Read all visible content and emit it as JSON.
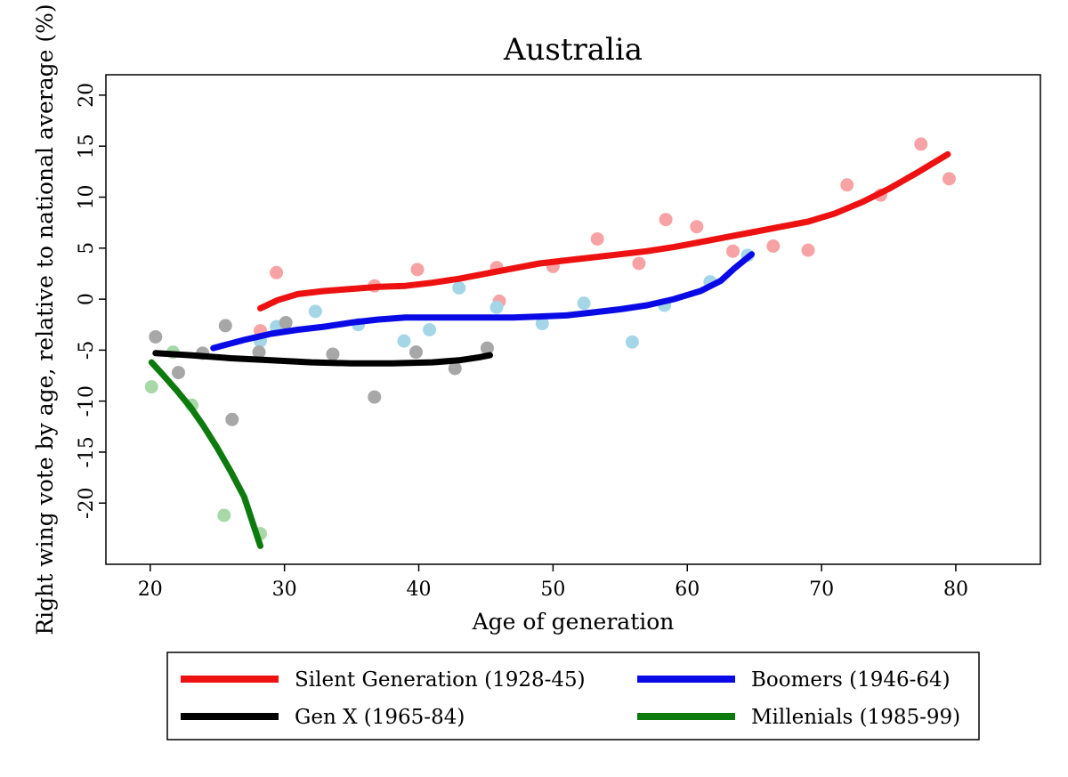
{
  "chart_data": {
    "type": "scatter",
    "title": "Australia",
    "xlabel": "Age of generation",
    "ylabel": "Right wing vote by age, relative to national average (%)",
    "xlim": [
      16.7,
      86.3
    ],
    "ylim": [
      -26,
      22
    ],
    "xticks": [
      20,
      30,
      40,
      50,
      60,
      70,
      80
    ],
    "yticks": [
      -20,
      -15,
      -10,
      -5,
      0,
      5,
      10,
      15,
      20
    ],
    "grid": false,
    "legend_position": "bottom",
    "series": [
      {
        "name": "Silent Generation (1928-45)",
        "color": "#ee1111",
        "point_color": "#f7a3a6",
        "points": [
          [
            28.2,
            -3.1
          ],
          [
            29.4,
            2.6
          ],
          [
            36.7,
            1.3
          ],
          [
            39.9,
            2.9
          ],
          [
            45.8,
            3.1
          ],
          [
            46.0,
            -0.2
          ],
          [
            50.0,
            3.2
          ],
          [
            53.3,
            5.9
          ],
          [
            56.4,
            3.5
          ],
          [
            58.4,
            7.8
          ],
          [
            60.7,
            7.1
          ],
          [
            63.4,
            4.7
          ],
          [
            66.4,
            5.2
          ],
          [
            69.0,
            4.8
          ],
          [
            71.9,
            11.2
          ],
          [
            74.4,
            10.2
          ],
          [
            77.4,
            15.2
          ],
          [
            79.5,
            11.8
          ]
        ],
        "trend": [
          [
            28.2,
            -0.9
          ],
          [
            29.5,
            -0.1
          ],
          [
            31.0,
            0.5
          ],
          [
            33.0,
            0.8
          ],
          [
            35.0,
            1.0
          ],
          [
            37.0,
            1.2
          ],
          [
            39.0,
            1.3
          ],
          [
            41.0,
            1.6
          ],
          [
            43.0,
            2.0
          ],
          [
            45.0,
            2.5
          ],
          [
            47.0,
            3.0
          ],
          [
            49.0,
            3.5
          ],
          [
            51.0,
            3.8
          ],
          [
            53.0,
            4.1
          ],
          [
            55.0,
            4.4
          ],
          [
            57.0,
            4.7
          ],
          [
            59.0,
            5.1
          ],
          [
            61.0,
            5.6
          ],
          [
            63.0,
            6.1
          ],
          [
            65.0,
            6.6
          ],
          [
            67.0,
            7.1
          ],
          [
            69.0,
            7.6
          ],
          [
            71.0,
            8.4
          ],
          [
            73.0,
            9.5
          ],
          [
            75.0,
            10.8
          ],
          [
            77.0,
            12.3
          ],
          [
            79.4,
            14.2
          ]
        ]
      },
      {
        "name": "Boomers (1946-64)",
        "color": "#0a0ae6",
        "point_color": "#a5d6e8",
        "points": [
          [
            28.2,
            -4.1
          ],
          [
            29.4,
            -2.7
          ],
          [
            32.3,
            -1.2
          ],
          [
            35.5,
            -2.5
          ],
          [
            38.9,
            -4.1
          ],
          [
            40.8,
            -3.0
          ],
          [
            43.0,
            1.1
          ],
          [
            45.8,
            -0.8
          ],
          [
            49.2,
            -2.4
          ],
          [
            52.3,
            -0.4
          ],
          [
            55.9,
            -4.2
          ],
          [
            58.3,
            -0.6
          ],
          [
            61.7,
            1.7
          ],
          [
            64.5,
            4.3
          ]
        ],
        "trend": [
          [
            24.7,
            -4.8
          ],
          [
            27.0,
            -4.0
          ],
          [
            29.0,
            -3.4
          ],
          [
            31.0,
            -3.0
          ],
          [
            33.0,
            -2.7
          ],
          [
            35.0,
            -2.3
          ],
          [
            37.0,
            -2.0
          ],
          [
            39.0,
            -1.8
          ],
          [
            41.0,
            -1.8
          ],
          [
            43.0,
            -1.8
          ],
          [
            45.0,
            -1.8
          ],
          [
            47.0,
            -1.8
          ],
          [
            49.0,
            -1.7
          ],
          [
            51.0,
            -1.6
          ],
          [
            53.0,
            -1.3
          ],
          [
            55.0,
            -1.0
          ],
          [
            57.0,
            -0.6
          ],
          [
            59.0,
            0.0
          ],
          [
            61.0,
            0.8
          ],
          [
            62.5,
            1.8
          ],
          [
            63.5,
            3.0
          ],
          [
            64.8,
            4.4
          ]
        ]
      },
      {
        "name": "Gen X (1965-84)",
        "color": "#000000",
        "point_color": "#a7a7a7",
        "points": [
          [
            20.4,
            -3.7
          ],
          [
            22.1,
            -7.2
          ],
          [
            23.9,
            -5.3
          ],
          [
            25.6,
            -2.6
          ],
          [
            26.1,
            -11.8
          ],
          [
            28.1,
            -5.2
          ],
          [
            30.1,
            -2.3
          ],
          [
            33.6,
            -5.4
          ],
          [
            36.7,
            -9.6
          ],
          [
            39.8,
            -5.2
          ],
          [
            42.7,
            -6.8
          ],
          [
            45.1,
            -4.8
          ]
        ],
        "trend": [
          [
            20.4,
            -5.3
          ],
          [
            23.0,
            -5.5
          ],
          [
            26.0,
            -5.8
          ],
          [
            29.0,
            -6.0
          ],
          [
            32.0,
            -6.2
          ],
          [
            35.0,
            -6.3
          ],
          [
            38.0,
            -6.3
          ],
          [
            41.0,
            -6.2
          ],
          [
            43.0,
            -6.0
          ],
          [
            44.5,
            -5.7
          ],
          [
            45.3,
            -5.5
          ]
        ]
      },
      {
        "name": "Millenials (1985-99)",
        "color": "#0d7a0d",
        "point_color": "#a8d8a8",
        "points": [
          [
            20.1,
            -8.6
          ],
          [
            21.7,
            -5.2
          ],
          [
            23.1,
            -10.4
          ],
          [
            25.5,
            -21.2
          ],
          [
            28.2,
            -23.0
          ]
        ],
        "trend": [
          [
            20.1,
            -6.2
          ],
          [
            21.0,
            -7.5
          ],
          [
            22.0,
            -9.0
          ],
          [
            23.0,
            -10.6
          ],
          [
            24.0,
            -12.5
          ],
          [
            25.0,
            -14.6
          ],
          [
            26.0,
            -16.9
          ],
          [
            27.0,
            -19.4
          ],
          [
            28.2,
            -24.2
          ]
        ]
      }
    ]
  }
}
